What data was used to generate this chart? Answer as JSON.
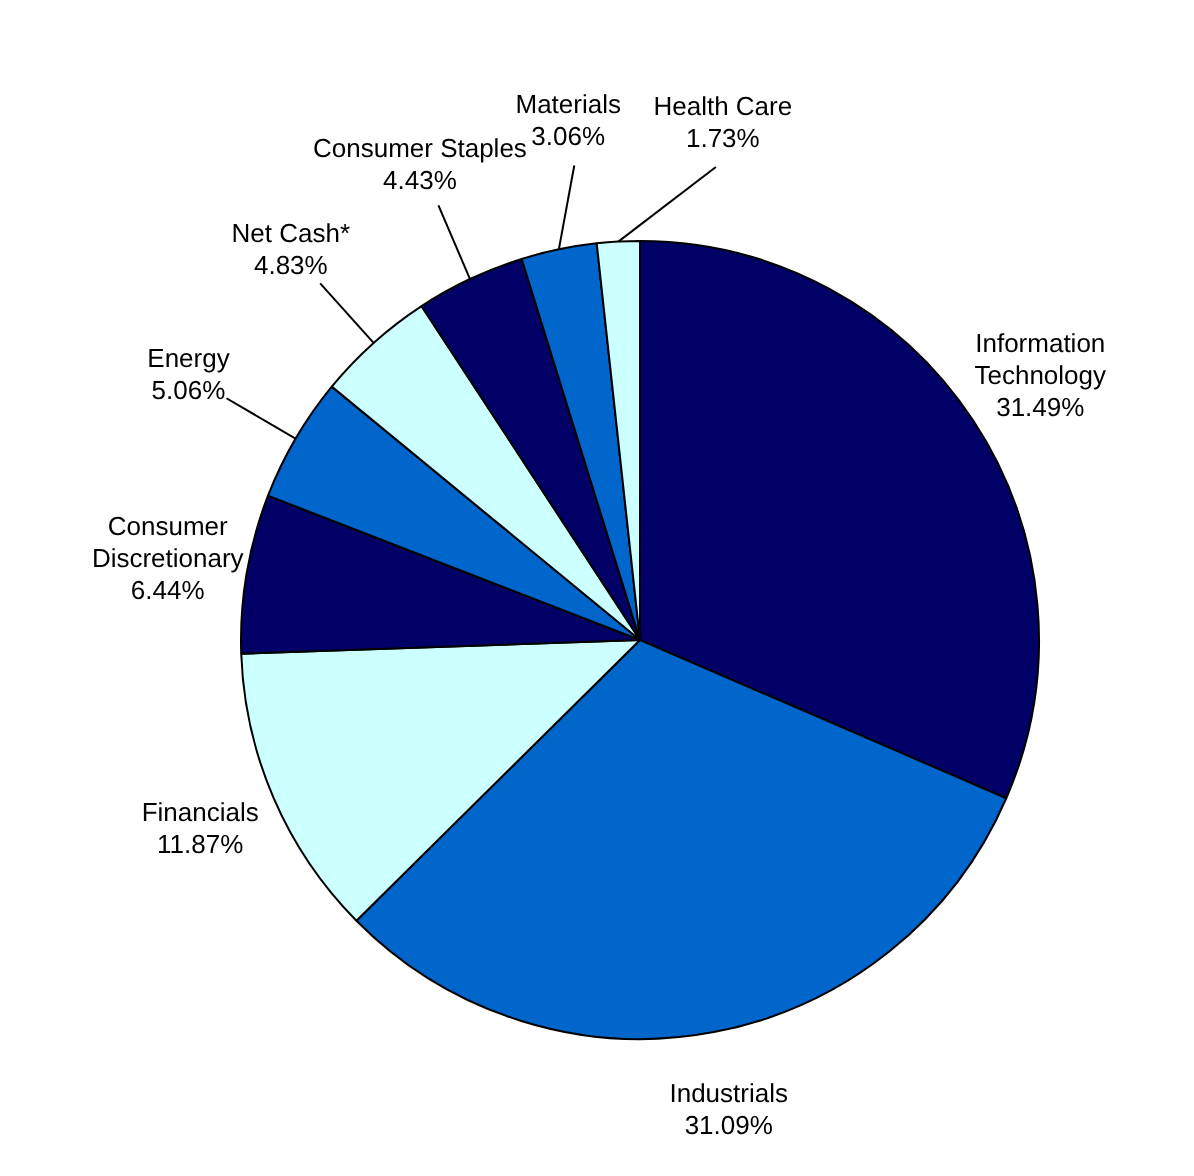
{
  "chart_data": {
    "type": "pie",
    "categories": [
      "Information Technology",
      "Industrials",
      "Financials",
      "Consumer Discretionary",
      "Energy",
      "Net Cash*",
      "Consumer Staples",
      "Materials",
      "Health Care"
    ],
    "values": [
      31.49,
      31.09,
      11.87,
      6.44,
      5.06,
      4.83,
      4.43,
      3.06,
      1.73
    ],
    "colors": [
      "#000066",
      "#0066cc",
      "#ccffff",
      "#000066",
      "#0066cc",
      "#ccffff",
      "#000066",
      "#0066cc",
      "#ccffff"
    ],
    "value_labels": [
      "31.49%",
      "31.09%",
      "11.87%",
      "6.44%",
      "5.06%",
      "4.83%",
      "4.43%",
      "3.06%",
      "1.73%"
    ]
  }
}
